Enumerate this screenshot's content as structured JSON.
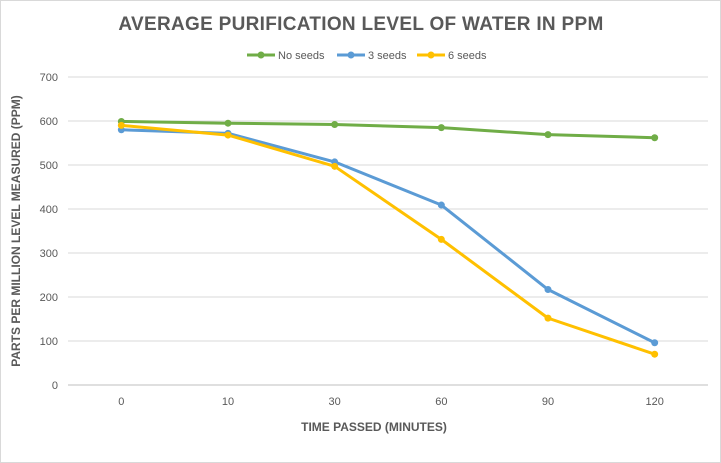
{
  "chart_data": {
    "type": "line",
    "title": "AVERAGE PURIFICATION LEVEL OF WATER  IN PPM",
    "xlabel": "TIME PASSED (MINUTES)",
    "ylabel": "PARTS PER MILLION  LEVEL  MEASURED (PPM)",
    "categories": [
      "0",
      "10",
      "30",
      "60",
      "90",
      "120"
    ],
    "ylim": [
      0,
      700
    ],
    "yticks": [
      0,
      100,
      200,
      300,
      400,
      500,
      600,
      700
    ],
    "grid": true,
    "legend_position": "top",
    "series": [
      {
        "name": "No seeds",
        "color": "#70ad47",
        "values": [
          599,
          595,
          592,
          585,
          569,
          562
        ]
      },
      {
        "name": "3 seeds",
        "color": "#5b9bd5",
        "values": [
          580,
          572,
          507,
          409,
          217,
          96
        ]
      },
      {
        "name": "6 seeds",
        "color": "#ffc000",
        "values": [
          590,
          568,
          497,
          331,
          152,
          70
        ]
      }
    ]
  }
}
